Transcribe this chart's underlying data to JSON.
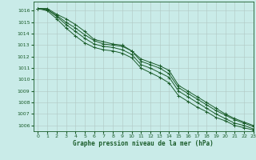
{
  "xlabel": "Graphe pression niveau de la mer (hPa)",
  "xlim": [
    -0.5,
    23
  ],
  "ylim": [
    1005.5,
    1016.8
  ],
  "yticks": [
    1006,
    1007,
    1008,
    1009,
    1010,
    1011,
    1012,
    1013,
    1014,
    1015,
    1016
  ],
  "xticks": [
    0,
    1,
    2,
    3,
    4,
    5,
    6,
    7,
    8,
    9,
    10,
    11,
    12,
    13,
    14,
    15,
    16,
    17,
    18,
    19,
    20,
    21,
    22,
    23
  ],
  "background_color": "#c9ebe8",
  "grid_color": "#b0c8c4",
  "line_color": "#1a5c2a",
  "series": [
    [
      1016.2,
      1016.2,
      1015.7,
      1015.3,
      1014.8,
      1014.2,
      1013.5,
      1013.3,
      1013.1,
      1013.0,
      1012.5,
      1011.8,
      1011.5,
      1011.2,
      1010.8,
      1009.5,
      1009.0,
      1008.5,
      1008.0,
      1007.5,
      1007.0,
      1006.6,
      1006.3,
      1006.0
    ],
    [
      1016.2,
      1016.1,
      1015.6,
      1015.0,
      1014.5,
      1013.9,
      1013.4,
      1013.1,
      1013.0,
      1012.9,
      1012.5,
      1011.6,
      1011.3,
      1011.0,
      1010.5,
      1009.3,
      1008.8,
      1008.3,
      1007.8,
      1007.3,
      1006.9,
      1006.5,
      1006.2,
      1005.9
    ],
    [
      1016.2,
      1016.1,
      1015.5,
      1014.8,
      1014.2,
      1013.6,
      1013.1,
      1012.9,
      1012.8,
      1012.6,
      1012.2,
      1011.3,
      1011.0,
      1010.6,
      1010.2,
      1009.0,
      1008.5,
      1008.0,
      1007.5,
      1007.0,
      1006.6,
      1006.2,
      1006.0,
      1005.7
    ],
    [
      1016.2,
      1016.0,
      1015.3,
      1014.5,
      1013.8,
      1013.2,
      1012.8,
      1012.6,
      1012.5,
      1012.3,
      1011.9,
      1011.0,
      1010.6,
      1010.2,
      1009.7,
      1008.6,
      1008.1,
      1007.6,
      1007.2,
      1006.7,
      1006.4,
      1006.0,
      1005.8,
      1005.6
    ]
  ]
}
